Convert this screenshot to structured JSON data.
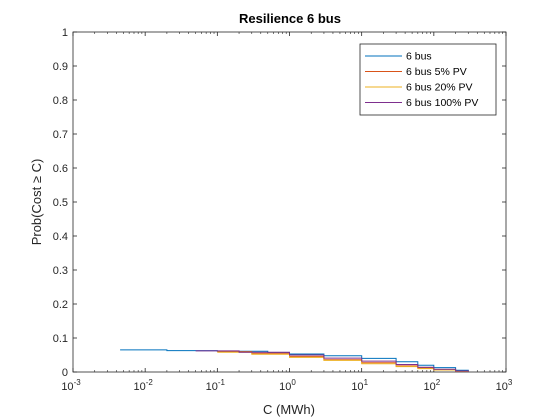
{
  "chart_data": {
    "type": "line",
    "title": "Resilience 6 bus",
    "xlabel": "C (MWh)",
    "ylabel": "Prob(Cost ≥ C)",
    "xscale": "log",
    "xlim": [
      0.001,
      1000
    ],
    "ylim": [
      0,
      1
    ],
    "x_ticks": [
      {
        "value": 0.001,
        "base": "10",
        "exp": "-3"
      },
      {
        "value": 0.01,
        "base": "10",
        "exp": "-2"
      },
      {
        "value": 0.1,
        "base": "10",
        "exp": "-1"
      },
      {
        "value": 1,
        "base": "10",
        "exp": "0"
      },
      {
        "value": 10,
        "base": "10",
        "exp": "1"
      },
      {
        "value": 100,
        "base": "10",
        "exp": "2"
      },
      {
        "value": 1000,
        "base": "10",
        "exp": "3"
      }
    ],
    "y_ticks": [
      {
        "value": 0,
        "label": "0"
      },
      {
        "value": 0.1,
        "label": "0.1"
      },
      {
        "value": 0.2,
        "label": "0.2"
      },
      {
        "value": 0.3,
        "label": "0.3"
      },
      {
        "value": 0.4,
        "label": "0.4"
      },
      {
        "value": 0.5,
        "label": "0.5"
      },
      {
        "value": 0.6,
        "label": "0.6"
      },
      {
        "value": 0.7,
        "label": "0.7"
      },
      {
        "value": 0.8,
        "label": "0.8"
      },
      {
        "value": 0.9,
        "label": "0.9"
      },
      {
        "value": 1,
        "label": "1"
      }
    ],
    "grid": false,
    "legend_position": "top-right",
    "series": [
      {
        "name": "6 bus",
        "color": "#0072BD",
        "points": [
          [
            0.0045,
            0.065
          ],
          [
            0.02,
            0.063
          ],
          [
            0.1,
            0.061
          ],
          [
            0.5,
            0.057
          ],
          [
            1,
            0.053
          ],
          [
            3,
            0.048
          ],
          [
            10,
            0.04
          ],
          [
            30,
            0.03
          ],
          [
            60,
            0.02
          ],
          [
            100,
            0.013
          ],
          [
            200,
            0.005
          ],
          [
            300,
            0.001
          ]
        ]
      },
      {
        "name": "6 bus 5% PV",
        "color": "#D95319",
        "points": [
          [
            0.1,
            0.06
          ],
          [
            0.3,
            0.055
          ],
          [
            1,
            0.046
          ],
          [
            3,
            0.036
          ],
          [
            10,
            0.027
          ],
          [
            30,
            0.018
          ],
          [
            60,
            0.012
          ],
          [
            100,
            0.007
          ],
          [
            200,
            0.002
          ],
          [
            300,
            0.0005
          ]
        ]
      },
      {
        "name": "6 bus 20% PV",
        "color": "#EDB120",
        "points": [
          [
            0.1,
            0.058
          ],
          [
            0.3,
            0.052
          ],
          [
            1,
            0.043
          ],
          [
            3,
            0.034
          ],
          [
            10,
            0.024
          ],
          [
            30,
            0.016
          ],
          [
            60,
            0.01
          ],
          [
            100,
            0.006
          ],
          [
            200,
            0.002
          ],
          [
            300,
            0.0005
          ]
        ]
      },
      {
        "name": "6 bus 100% PV",
        "color": "#7E2F8E",
        "points": [
          [
            0.05,
            0.062
          ],
          [
            0.2,
            0.058
          ],
          [
            1,
            0.05
          ],
          [
            3,
            0.041
          ],
          [
            10,
            0.032
          ],
          [
            30,
            0.022
          ],
          [
            60,
            0.014
          ],
          [
            100,
            0.008
          ],
          [
            200,
            0.003
          ],
          [
            300,
            0.001
          ]
        ]
      }
    ]
  }
}
